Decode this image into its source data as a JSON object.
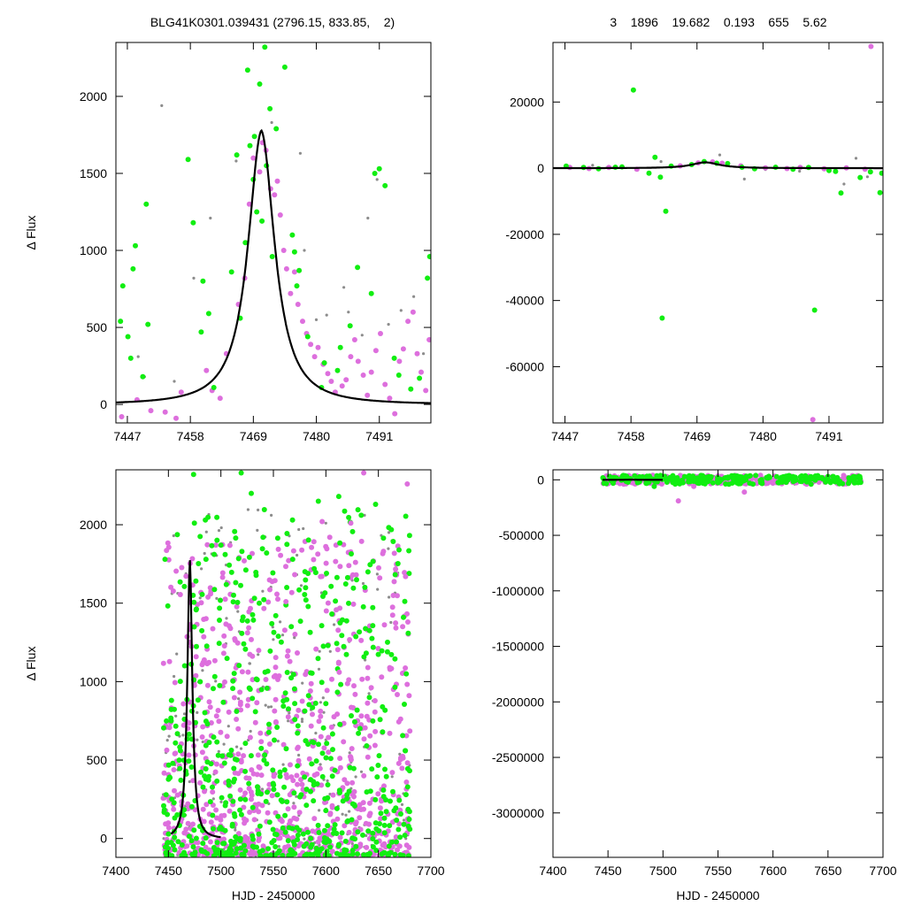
{
  "header": {
    "left_title": "BLG41K0301.039431 (2796.15, 833.85,    2)",
    "right_title": "3    1896    19.682    0.193    655    5.62"
  },
  "colors": {
    "series_magenta": "#dd6fdd",
    "series_green": "#11ee11",
    "series_gray": "#8c8c8c",
    "model_line": "#000000"
  },
  "model": {
    "t0": 7470.4,
    "peak": 1780,
    "halfwidth_days": 3.2,
    "shape": "microlensing-peak"
  },
  "chart_data": [
    {
      "type": "scatter",
      "panel": "top-left",
      "xlabel": "",
      "ylabel": "Δ Flux",
      "xlim": [
        7445,
        7500
      ],
      "ylim": [
        -120,
        2350
      ],
      "xticks": [
        7447,
        7458,
        7469,
        7480,
        7491
      ],
      "yticks": [
        0,
        500,
        1000,
        1500,
        2000
      ],
      "series": [
        {
          "color": "series_green",
          "points": [
            [
              7445.8,
              540
            ],
            [
              7446.2,
              770
            ],
            [
              7447.1,
              440
            ],
            [
              7447.6,
              300
            ],
            [
              7448.0,
              880
            ],
            [
              7448.4,
              1030
            ],
            [
              7449.7,
              180
            ],
            [
              7450.3,
              1300
            ],
            [
              7450.6,
              520
            ],
            [
              7457.6,
              1590
            ],
            [
              7458.5,
              1180
            ],
            [
              7459.9,
              470
            ],
            [
              7460.2,
              800
            ],
            [
              7461.2,
              590
            ],
            [
              7462.1,
              110
            ],
            [
              7465.2,
              860
            ],
            [
              7466.1,
              1620
            ],
            [
              7466.7,
              560
            ],
            [
              7467.6,
              1050
            ],
            [
              7468.0,
              2170
            ],
            [
              7468.4,
              1680
            ],
            [
              7469.0,
              1460
            ],
            [
              7469.2,
              1740
            ],
            [
              7469.6,
              1250
            ],
            [
              7470.1,
              2080
            ],
            [
              7470.5,
              1190
            ],
            [
              7471.0,
              2320
            ],
            [
              7471.3,
              1550
            ],
            [
              7471.9,
              1920
            ],
            [
              7472.3,
              960
            ],
            [
              7473.0,
              1790
            ],
            [
              7474.5,
              2190
            ],
            [
              7475.8,
              1100
            ],
            [
              7476.2,
              990
            ],
            [
              7476.6,
              770
            ],
            [
              7477.0,
              870
            ],
            [
              7478.5,
              440
            ],
            [
              7480.9,
              110
            ],
            [
              7481.4,
              270
            ],
            [
              7483.7,
              220
            ],
            [
              7484.2,
              370
            ],
            [
              7485.9,
              510
            ],
            [
              7487.2,
              890
            ],
            [
              7489.6,
              720
            ],
            [
              7490.2,
              1500
            ],
            [
              7491.0,
              1530
            ],
            [
              7492.0,
              1420
            ],
            [
              7493.6,
              300
            ],
            [
              7494.4,
              190
            ],
            [
              7496.5,
              100
            ],
            [
              7498.0,
              170
            ],
            [
              7499.4,
              820
            ],
            [
              7499.8,
              960
            ]
          ]
        },
        {
          "color": "series_magenta",
          "points": [
            [
              7446.0,
              -80
            ],
            [
              7448.7,
              30
            ],
            [
              7451.1,
              -40
            ],
            [
              7453.6,
              -50
            ],
            [
              7455.5,
              -90
            ],
            [
              7456.4,
              80
            ],
            [
              7460.8,
              220
            ],
            [
              7461.8,
              90
            ],
            [
              7463.2,
              40
            ],
            [
              7464.3,
              330
            ],
            [
              7466.4,
              650
            ],
            [
              7467.5,
              820
            ],
            [
              7468.3,
              1300
            ],
            [
              7469.0,
              1600
            ],
            [
              7470.1,
              1510
            ],
            [
              7470.6,
              1700
            ],
            [
              7471.2,
              1650
            ],
            [
              7472.0,
              1400
            ],
            [
              7472.7,
              1360
            ],
            [
              7473.2,
              1450
            ],
            [
              7473.7,
              1230
            ],
            [
              7474.3,
              1000
            ],
            [
              7474.8,
              880
            ],
            [
              7475.5,
              720
            ],
            [
              7476.2,
              860
            ],
            [
              7476.8,
              650
            ],
            [
              7477.6,
              540
            ],
            [
              7478.3,
              460
            ],
            [
              7479.0,
              390
            ],
            [
              7479.7,
              310
            ],
            [
              7480.3,
              370
            ],
            [
              7481.2,
              260
            ],
            [
              7482.0,
              200
            ],
            [
              7482.6,
              150
            ],
            [
              7483.3,
              80
            ],
            [
              7484.5,
              120
            ],
            [
              7485.2,
              160
            ],
            [
              7486.0,
              310
            ],
            [
              7486.7,
              420
            ],
            [
              7487.3,
              280
            ],
            [
              7488.2,
              190
            ],
            [
              7488.9,
              60
            ],
            [
              7489.6,
              210
            ],
            [
              7490.4,
              350
            ],
            [
              7491.2,
              460
            ],
            [
              7492.0,
              130
            ],
            [
              7492.8,
              40
            ],
            [
              7493.7,
              -60
            ],
            [
              7494.5,
              280
            ],
            [
              7495.2,
              360
            ],
            [
              7496.0,
              540
            ],
            [
              7496.9,
              600
            ],
            [
              7497.6,
              330
            ],
            [
              7498.3,
              210
            ],
            [
              7499.1,
              90
            ],
            [
              7499.7,
              420
            ]
          ]
        },
        {
          "color": "series_gray",
          "points": [
            [
              7448.9,
              310
            ],
            [
              7450.0,
              180
            ],
            [
              7453.0,
              1940
            ],
            [
              7455.2,
              150
            ],
            [
              7458.6,
              820
            ],
            [
              7461.5,
              1210
            ],
            [
              7466.0,
              1580
            ],
            [
              7472.2,
              1830
            ],
            [
              7477.2,
              1630
            ],
            [
              7477.9,
              1000
            ],
            [
              7480.0,
              550
            ],
            [
              7481.8,
              580
            ],
            [
              7484.8,
              760
            ],
            [
              7485.6,
              600
            ],
            [
              7488.0,
              450
            ],
            [
              7489.0,
              1210
            ],
            [
              7490.6,
              1460
            ],
            [
              7492.6,
              520
            ],
            [
              7494.8,
              610
            ],
            [
              7497.0,
              700
            ],
            [
              7498.7,
              330
            ]
          ]
        }
      ]
    },
    {
      "type": "scatter",
      "panel": "top-right",
      "xlabel": "",
      "ylabel": "",
      "xlim": [
        7445,
        7500
      ],
      "ylim": [
        -77000,
        38000
      ],
      "xticks": [
        7447,
        7458,
        7469,
        7480,
        7491
      ],
      "yticks": [
        -60000,
        -40000,
        -20000,
        0,
        20000
      ],
      "series": [
        {
          "color": "series_green",
          "points": [
            [
              7447.2,
              600
            ],
            [
              7450.1,
              200
            ],
            [
              7452.6,
              -200
            ],
            [
              7455.4,
              300
            ],
            [
              7456.5,
              400
            ],
            [
              7458.4,
              23600
            ],
            [
              7461.0,
              -1500
            ],
            [
              7462.0,
              3300
            ],
            [
              7462.9,
              -2700
            ],
            [
              7463.2,
              -45300
            ],
            [
              7463.8,
              -13000
            ],
            [
              7464.7,
              600
            ],
            [
              7468.1,
              1100
            ],
            [
              7470.2,
              2000
            ],
            [
              7472.3,
              1500
            ],
            [
              7474.1,
              1400
            ],
            [
              7476.5,
              300
            ],
            [
              7478.6,
              -200
            ],
            [
              7482.1,
              300
            ],
            [
              7485.0,
              -300
            ],
            [
              7487.6,
              200
            ],
            [
              7488.6,
              -42900
            ],
            [
              7491.0,
              -700
            ],
            [
              7492.1,
              -1000
            ],
            [
              7493.0,
              -7500
            ],
            [
              7496.2,
              -2800
            ],
            [
              7497.9,
              -1100
            ],
            [
              7499.5,
              -7400
            ],
            [
              7499.8,
              -1500
            ]
          ]
        },
        {
          "color": "series_magenta",
          "points": [
            [
              7447.8,
              200
            ],
            [
              7451.0,
              -100
            ],
            [
              7454.3,
              200
            ],
            [
              7459.0,
              -300
            ],
            [
              7466.2,
              700
            ],
            [
              7469.2,
              1600
            ],
            [
              7471.6,
              1900
            ],
            [
              7473.2,
              1500
            ],
            [
              7476.3,
              700
            ],
            [
              7480.4,
              100
            ],
            [
              7484.0,
              -100
            ],
            [
              7486.2,
              200
            ],
            [
              7488.3,
              -76000
            ],
            [
              7490.2,
              -200
            ],
            [
              7493.9,
              100
            ],
            [
              7497.0,
              -300
            ],
            [
              7498.0,
              36800
            ]
          ]
        },
        {
          "color": "series_gray",
          "points": [
            [
              7451.6,
              900
            ],
            [
              7458.8,
              -500
            ],
            [
              7463.0,
              2000
            ],
            [
              7472.8,
              4000
            ],
            [
              7476.9,
              -3300
            ],
            [
              7480.4,
              -400
            ],
            [
              7486.1,
              -900
            ],
            [
              7493.5,
              -4800
            ],
            [
              7495.5,
              3000
            ],
            [
              7497.4,
              -2600
            ]
          ]
        }
      ]
    },
    {
      "type": "scatter",
      "panel": "bottom-left",
      "xlabel": "HJD - 2450000",
      "ylabel": "Δ Flux",
      "xlim": [
        7400,
        7700
      ],
      "ylim": [
        -120,
        2350
      ],
      "xticks": [
        7400,
        7450,
        7500,
        7550,
        7600,
        7650,
        7700
      ],
      "yticks": [
        0,
        500,
        1000,
        1500,
        2000
      ],
      "point_cloud": {
        "magenta": {
          "x": [
            7445,
            7680
          ],
          "y": [
            -110,
            1900
          ],
          "count": 850
        },
        "green": {
          "x": [
            7445,
            7680
          ],
          "y": [
            -110,
            2100
          ],
          "count": 650
        },
        "gray": {
          "x": [
            7445,
            7680
          ],
          "y": [
            -110,
            2100
          ],
          "count": 250
        }
      },
      "series": [
        {
          "color": "series_green",
          "points": [
            [
              7474.0,
              2320
            ],
            [
              7519.3,
              2330
            ],
            [
              7528.9,
              2200
            ],
            [
              7540.1,
              1920
            ],
            [
              7592.8,
              2150
            ],
            [
              7612.3,
              2180
            ],
            [
              7633.7,
              2060
            ],
            [
              7647.3,
              2130
            ],
            [
              7500.0,
              1870
            ],
            [
              7520.0,
              1830
            ],
            [
              7536.5,
              1500
            ],
            [
              7552.3,
              1420
            ],
            [
              7568.4,
              1780
            ],
            [
              7602.0,
              1230
            ]
          ]
        },
        {
          "color": "series_magenta",
          "points": [
            [
              7596.4,
              2020
            ],
            [
              7603.7,
              1920
            ],
            [
              7623.7,
              2010
            ],
            [
              7636.0,
              2330
            ],
            [
              7677.5,
              2260
            ],
            [
              7675.9,
              1670
            ],
            [
              7562.0,
              1510
            ],
            [
              7612.7,
              1060
            ]
          ]
        },
        {
          "color": "series_gray",
          "points": [
            [
              7455.0,
              1930
            ],
            [
              7496.0,
              1530
            ],
            [
              7548.0,
              2060
            ],
            [
              7600.0,
              2010
            ],
            [
              7660.0,
              1950
            ],
            [
              7570.0,
              1280
            ]
          ]
        }
      ]
    },
    {
      "type": "scatter",
      "panel": "bottom-right",
      "xlabel": "HJD - 2450000",
      "ylabel": "",
      "xlim": [
        7400,
        7700
      ],
      "ylim": [
        -3400000,
        90000
      ],
      "xticks": [
        7400,
        7450,
        7500,
        7550,
        7600,
        7650,
        7700
      ],
      "yticks": [
        -3000000,
        -2500000,
        -2000000,
        -1500000,
        -1000000,
        -500000,
        0
      ],
      "point_cloud": {
        "magenta": {
          "x": [
            7445,
            7680
          ],
          "y": [
            -40000,
            40000
          ],
          "count": 260
        },
        "green": {
          "x": [
            7445,
            7680
          ],
          "y": [
            -40000,
            40000
          ],
          "count": 260
        },
        "gray": {
          "x": [
            7445,
            7680
          ],
          "y": [
            -40000,
            40000
          ],
          "count": 60
        }
      },
      "series": [
        {
          "color": "series_magenta",
          "points": [
            [
              7514.0,
              -190000
            ],
            [
              7574.0,
              -110000
            ],
            [
              7528.0,
              -60000
            ]
          ]
        },
        {
          "color": "series_green",
          "points": [
            [
              7492.0,
              -60000
            ],
            [
              7560.0,
              -40000
            ]
          ]
        }
      ]
    }
  ]
}
